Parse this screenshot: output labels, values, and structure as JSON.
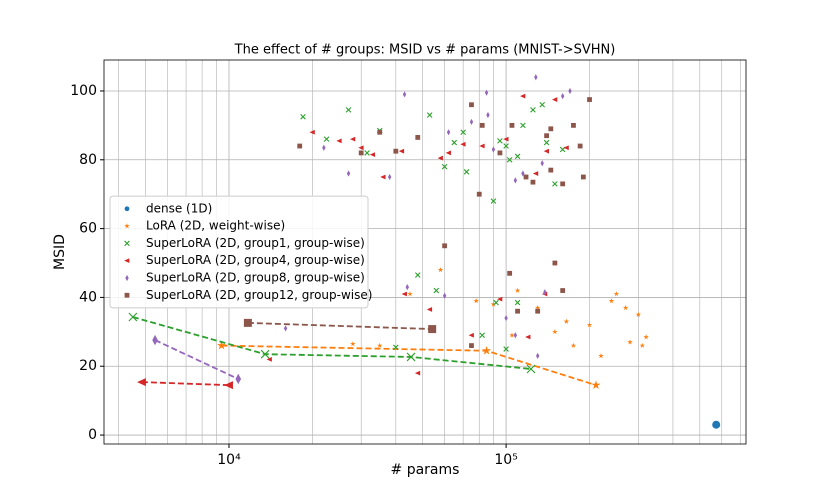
{
  "chart_data": {
    "type": "scatter",
    "title": "The effect of # groups: MSID vs # params (MNIST->SVHN)",
    "xlabel": "# params",
    "ylabel": "MSID",
    "log_x": true,
    "grid": true,
    "legend": "center left",
    "xlim": [
      3540,
      734000
    ],
    "xticks": [
      {
        "value": 10000,
        "label": "10⁴"
      },
      {
        "value": 100000,
        "label": "10⁵"
      }
    ],
    "xminorticks": [
      4000,
      5000,
      6000,
      7000,
      8000,
      9000,
      20000,
      30000,
      40000,
      50000,
      60000,
      70000,
      80000,
      90000,
      200000,
      300000,
      400000,
      500000,
      600000,
      700000
    ],
    "ylim": [
      -2.6,
      109
    ],
    "yticks": [
      0,
      20,
      40,
      60,
      80,
      100
    ],
    "series": [
      {
        "name": "dense (1D)",
        "color": "#1f77b4",
        "marker": "circle",
        "x": [],
        "values": [],
        "front_x": [
          573000
        ],
        "front_values": [
          3
        ]
      },
      {
        "name": "LoRA (2D, weight-wise)",
        "color": "#ff7f0e",
        "marker": "star",
        "x": [
          58000,
          78000,
          110000,
          130000,
          150000,
          165000,
          175000,
          200000,
          220000,
          240000,
          250000,
          270000,
          280000,
          300000,
          310000,
          320000,
          90000,
          105000,
          45000,
          28000,
          35000
        ],
        "values": [
          48,
          39,
          42,
          37,
          30,
          33,
          26,
          32,
          23,
          39,
          41,
          37,
          27,
          35,
          26,
          28.5,
          38,
          29,
          41,
          26.5,
          26
        ],
        "front_x": [
          9400,
          85000,
          211000
        ],
        "front_values": [
          26,
          24.5,
          14.5
        ]
      },
      {
        "name": "SuperLoRA (2D, group1, group-wise)",
        "color": "#2ca02c",
        "marker": "x",
        "x": [
          18500,
          22500,
          27000,
          31500,
          35000,
          53000,
          60000,
          65000,
          70000,
          72000,
          90000,
          95000,
          100000,
          103000,
          110000,
          125000,
          135000,
          140000,
          150000,
          160000,
          115000,
          48000,
          56000,
          82000,
          92000,
          110000,
          100000,
          40000
        ],
        "values": [
          92.5,
          86,
          94.5,
          82,
          88.5,
          93,
          78,
          85,
          88,
          76.5,
          68,
          85.5,
          84,
          80,
          81,
          94.5,
          96,
          85,
          73,
          83,
          90,
          46.5,
          42,
          29,
          38.5,
          38.5,
          25,
          25.5
        ],
        "front_x": [
          4500,
          13500,
          45400,
          123000
        ],
        "front_values": [
          34.3,
          23.5,
          22.7,
          19.2
        ]
      },
      {
        "name": "SuperLoRA (2D, group4, group-wise)",
        "color": "#d62728",
        "marker": "triangle-left",
        "x": [
          20000,
          25000,
          28000,
          30000,
          33000,
          36000,
          42000,
          58000,
          62000,
          70000,
          82000,
          100000,
          115000,
          128000,
          140000,
          150000,
          165000,
          43000,
          53000,
          75000,
          95000,
          14000,
          48000,
          120000,
          138000
        ],
        "values": [
          88,
          85.5,
          86,
          83.5,
          81.5,
          75,
          82.5,
          80.5,
          82,
          84.5,
          84,
          86,
          98.5,
          76,
          82.5,
          97.5,
          83.5,
          41,
          36.5,
          29,
          39.5,
          22,
          18,
          28.5,
          41
        ],
        "front_x": [
          4850,
          10000
        ],
        "front_values": [
          15.4,
          14.5
        ]
      },
      {
        "name": "SuperLoRA (2D, group8, group-wise)",
        "color": "#9467bd",
        "marker": "diamond",
        "x": [
          22000,
          27000,
          38000,
          43000,
          44000,
          62000,
          75000,
          85000,
          86000,
          90000,
          108000,
          115000,
          128000,
          135000,
          160000,
          170000,
          16000,
          60000,
          100000,
          130000,
          138000,
          108000
        ],
        "values": [
          83.5,
          76,
          75,
          99,
          43,
          88,
          91,
          99.5,
          93,
          83,
          74,
          76,
          104,
          79,
          98.5,
          100,
          31,
          40.5,
          34,
          23,
          41.5,
          29
        ],
        "front_x": [
          5410,
          10800
        ],
        "front_values": [
          27.6,
          16.3
        ]
      },
      {
        "name": "SuperLoRA (2D, group12, group-wise)",
        "color": "#8c564b",
        "marker": "square",
        "x": [
          18000,
          30000,
          35000,
          40000,
          48000,
          60000,
          75000,
          80000,
          82000,
          95000,
          103000,
          105000,
          118000,
          125000,
          140000,
          145000,
          160000,
          175000,
          185000,
          190000,
          200000,
          130000,
          150000,
          160000,
          75000,
          110000,
          145000
        ],
        "values": [
          84,
          82,
          88,
          82.5,
          86.5,
          55,
          96,
          70,
          90,
          82,
          47,
          90,
          75,
          73.5,
          87,
          89,
          73,
          90,
          84,
          75,
          97.5,
          36,
          50,
          42,
          26,
          36,
          77
        ],
        "front_x": [
          11700,
          54100
        ],
        "front_values": [
          32.6,
          30.8
        ]
      }
    ]
  }
}
